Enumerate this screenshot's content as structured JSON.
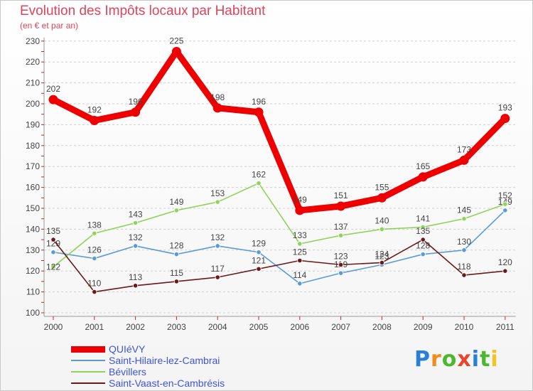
{
  "header": {
    "title": "Evolution des Impôts locaux par Habitant",
    "subtitle": "(en € et par an)"
  },
  "logo": {
    "letters": [
      "P",
      "r",
      "o",
      "x",
      "i",
      "t",
      "i"
    ],
    "colors": [
      "#2a7fd4",
      "#f28c1c",
      "#4db82f",
      "#e8452c",
      "#2a7fd4",
      "#4db82f",
      "#f5c31d"
    ]
  },
  "chart_data": {
    "type": "line",
    "title": "Evolution des Impôts locaux par Habitant",
    "subtitle": "(en € et par an)",
    "xlabel": "",
    "ylabel": "",
    "ylim": [
      100,
      230
    ],
    "yticks": [
      "100",
      "110",
      "120",
      "130",
      "140",
      "150",
      "160",
      "170",
      "180",
      "190",
      "200",
      "210",
      "220",
      "230"
    ],
    "grid": "horizontal-dashed",
    "legend_position": "bottom-left",
    "categories": [
      "2000",
      "2001",
      "2002",
      "2003",
      "2004",
      "2005",
      "2006",
      "2007",
      "2008",
      "2009",
      "2010",
      "2011"
    ],
    "series": [
      {
        "name": "QUIéVY",
        "color": "#ee0000",
        "width": "thick",
        "values": [
          202,
          192,
          196,
          225,
          198,
          196,
          149,
          151,
          155,
          165,
          173,
          193
        ]
      },
      {
        "name": "Saint-Hilaire-lez-Cambrai",
        "color": "#5b9bd5",
        "width": "thin",
        "values": [
          129,
          126,
          132,
          128,
          132,
          129,
          114,
          119,
          123,
          128,
          130,
          149
        ]
      },
      {
        "name": "Bévillers",
        "color": "#8fd45a",
        "width": "thin",
        "values": [
          122,
          138,
          143,
          149,
          153,
          162,
          133,
          137,
          140,
          141,
          145,
          152
        ]
      },
      {
        "name": "Saint-Vaast-en-Cambrésis",
        "color": "#6b1a1a",
        "width": "thin",
        "values": [
          135,
          110,
          113,
          115,
          117,
          121,
          125,
          123,
          124,
          135,
          118,
          120
        ]
      }
    ]
  }
}
